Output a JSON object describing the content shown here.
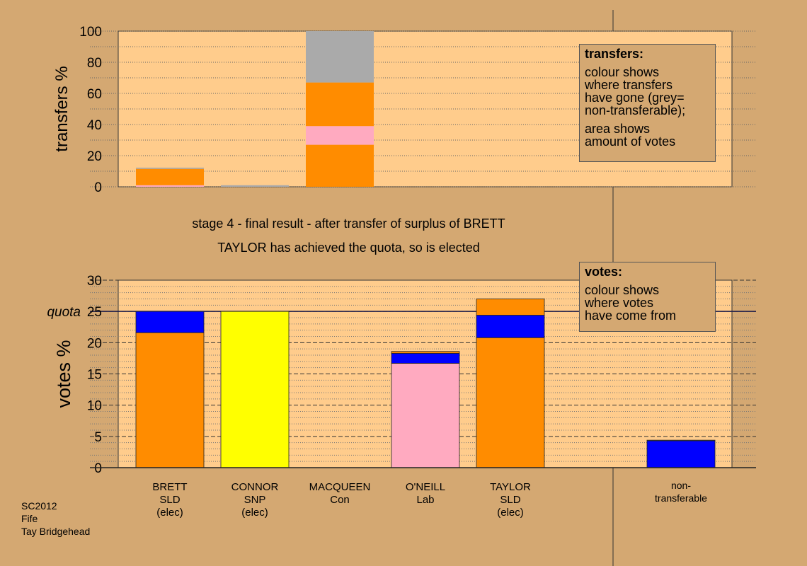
{
  "chart_data": [
    {
      "type": "bar",
      "stacked": true,
      "ylabel": "transfers %",
      "ylim": [
        0,
        100
      ],
      "yticks": [
        0,
        20,
        40,
        60,
        80,
        100
      ],
      "grid": true,
      "categories": [
        "BRETT",
        "CONNOR",
        "MACQUEEN",
        "O'NEILL",
        "TAYLOR",
        "non-transferable"
      ],
      "bars": [
        {
          "category": "BRETT",
          "segments": [
            {
              "color": "#ffaac0",
              "value": 1.0
            },
            {
              "color": "#ff8c00",
              "value": 10.5
            },
            {
              "color": "#aaaaaa",
              "value": 0.8
            }
          ]
        },
        {
          "category": "CONNOR",
          "segments": [
            {
              "color": "#aaaaaa",
              "value": 1.0
            }
          ]
        },
        {
          "category": "MACQUEEN",
          "segments": [
            {
              "color": "#ff8c00",
              "value": 27.0
            },
            {
              "color": "#ffaac0",
              "value": 12.0
            },
            {
              "color": "#ff8c00",
              "value": 28.0
            },
            {
              "color": "#aaaaaa",
              "value": 33.0
            }
          ]
        }
      ]
    },
    {
      "type": "bar",
      "stacked": true,
      "ylabel": "votes %",
      "ylim": [
        0,
        30
      ],
      "yticks": [
        0,
        5,
        10,
        15,
        20,
        25,
        30
      ],
      "quota": 25,
      "quota_label": "quota",
      "grid": true,
      "bars": [
        {
          "category": "BRETT",
          "segments": [
            {
              "color": "#ff8c00",
              "value": 21.6
            },
            {
              "color": "#0000ff",
              "value": 3.4
            }
          ]
        },
        {
          "category": "CONNOR",
          "segments": [
            {
              "color": "#ffff00",
              "value": 25.0
            }
          ]
        },
        {
          "category": "MACQUEEN",
          "segments": []
        },
        {
          "category": "O'NEILL",
          "segments": [
            {
              "color": "#ffaac0",
              "value": 16.7
            },
            {
              "color": "#0000ff",
              "value": 1.6
            },
            {
              "color": "#ff8c00",
              "value": 0.3
            }
          ]
        },
        {
          "category": "TAYLOR",
          "segments": [
            {
              "color": "#ff8c00",
              "value": 20.8
            },
            {
              "color": "#0000ff",
              "value": 3.6
            },
            {
              "color": "#ff8c00",
              "value": 2.6
            }
          ]
        },
        {
          "category": "non-transferable",
          "segments": [
            {
              "color": "#0000ff",
              "value": 4.3
            },
            {
              "color": "#aaaaaa",
              "value": 0.1
            }
          ]
        }
      ],
      "candidate_labels": [
        [
          "BRETT",
          "SLD",
          "(elec)"
        ],
        [
          "CONNOR",
          "SNP",
          "(elec)"
        ],
        [
          "MACQUEEN",
          "Con"
        ],
        [
          "O'NEILL",
          "Lab"
        ],
        [
          "TAYLOR",
          "SLD",
          "(elec)"
        ],
        [
          "non-",
          "transferable"
        ]
      ]
    }
  ],
  "captions": {
    "stage": "stage 4 - final result - after transfer of surplus of BRETT",
    "elected": "TAYLOR has achieved the quota, so is elected"
  },
  "legend_transfers": {
    "title": "transfers:",
    "line1": "colour shows",
    "line2": "where transfers",
    "line3": "have gone (grey=",
    "line4": "non-transferable);",
    "line5": "area shows",
    "line6": "amount of votes"
  },
  "legend_votes": {
    "title": "votes:",
    "line1": "colour shows",
    "line2": "where votes",
    "line3": "have come from"
  },
  "footer": {
    "code": "SC2012",
    "region": "Fife",
    "ward": "Tay Bridgehead"
  },
  "colors": {
    "background": "#d4a872",
    "plot_area": "#ffcc8c",
    "orange": "#ff8c00",
    "blue": "#0000ff",
    "yellow": "#ffff00",
    "pink": "#ffaac0",
    "grey": "#aaaaaa"
  }
}
